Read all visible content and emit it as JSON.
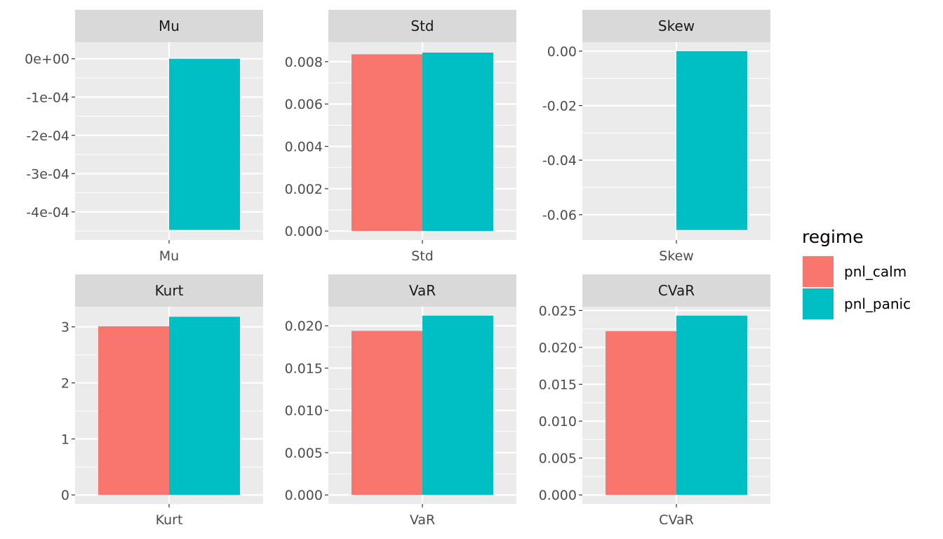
{
  "chart_data": {
    "type": "bar",
    "facets": [
      {
        "title": "Mu",
        "category": "Mu",
        "ylim": [
          -0.00045,
          2e-05
        ],
        "ticks": [
          {
            "v": 0,
            "label": "0e+00"
          },
          {
            "v": -0.0001,
            "label": "-1e-04"
          },
          {
            "v": -0.0002,
            "label": "-2e-04"
          },
          {
            "v": -0.0003,
            "label": "-3e-04"
          },
          {
            "v": -0.0004,
            "label": "-4e-04"
          }
        ],
        "series": [
          {
            "name": "pnl_calm",
            "value": 0.0
          },
          {
            "name": "pnl_panic",
            "value": -0.000447
          }
        ]
      },
      {
        "title": "Std",
        "category": "Std",
        "ylim": [
          0,
          0.0085
        ],
        "ticks": [
          {
            "v": 0,
            "label": "0.000"
          },
          {
            "v": 0.002,
            "label": "0.002"
          },
          {
            "v": 0.004,
            "label": "0.004"
          },
          {
            "v": 0.006,
            "label": "0.006"
          },
          {
            "v": 0.008,
            "label": "0.008"
          }
        ],
        "series": [
          {
            "name": "pnl_calm",
            "value": 0.00835
          },
          {
            "name": "pnl_panic",
            "value": 0.00843
          }
        ]
      },
      {
        "title": "Skew",
        "category": "Skew",
        "ylim": [
          -0.066,
          0.0
        ],
        "ticks": [
          {
            "v": 0,
            "label": "0.00"
          },
          {
            "v": -0.02,
            "label": "-0.02"
          },
          {
            "v": -0.04,
            "label": "-0.04"
          },
          {
            "v": -0.06,
            "label": "-0.06"
          }
        ],
        "series": [
          {
            "name": "pnl_calm",
            "value": 0.0
          },
          {
            "name": "pnl_panic",
            "value": -0.0656
          }
        ]
      },
      {
        "title": "Kurt",
        "category": "Kurt",
        "ylim": [
          0,
          3.2
        ],
        "ticks": [
          {
            "v": 0,
            "label": "0"
          },
          {
            "v": 1,
            "label": "1"
          },
          {
            "v": 2,
            "label": "2"
          },
          {
            "v": 3,
            "label": "3"
          }
        ],
        "series": [
          {
            "name": "pnl_calm",
            "value": 3.01
          },
          {
            "name": "pnl_panic",
            "value": 3.18
          }
        ]
      },
      {
        "title": "VaR",
        "category": "VaR",
        "ylim": [
          0,
          0.0212
        ],
        "ticks": [
          {
            "v": 0,
            "label": "0.000"
          },
          {
            "v": 0.005,
            "label": "0.005"
          },
          {
            "v": 0.01,
            "label": "0.010"
          },
          {
            "v": 0.015,
            "label": "0.015"
          },
          {
            "v": 0.02,
            "label": "0.020"
          }
        ],
        "series": [
          {
            "name": "pnl_calm",
            "value": 0.0194
          },
          {
            "name": "pnl_panic",
            "value": 0.0212
          }
        ]
      },
      {
        "title": "CVaR",
        "category": "CVaR",
        "ylim": [
          0,
          0.0243
        ],
        "ticks": [
          {
            "v": 0,
            "label": "0.000"
          },
          {
            "v": 0.005,
            "label": "0.005"
          },
          {
            "v": 0.01,
            "label": "0.010"
          },
          {
            "v": 0.015,
            "label": "0.015"
          },
          {
            "v": 0.02,
            "label": "0.020"
          },
          {
            "v": 0.025,
            "label": "0.025"
          }
        ],
        "series": [
          {
            "name": "pnl_calm",
            "value": 0.0222
          },
          {
            "name": "pnl_panic",
            "value": 0.0243
          }
        ]
      }
    ],
    "legend": {
      "title": "regime",
      "position": "right",
      "entries": [
        {
          "name": "pnl_calm",
          "color": "#F8766D"
        },
        {
          "name": "pnl_panic",
          "color": "#00BFC4"
        }
      ]
    },
    "panel_background": "#EBEBEB",
    "strip_background": "#D9D9D9",
    "grid": true
  }
}
